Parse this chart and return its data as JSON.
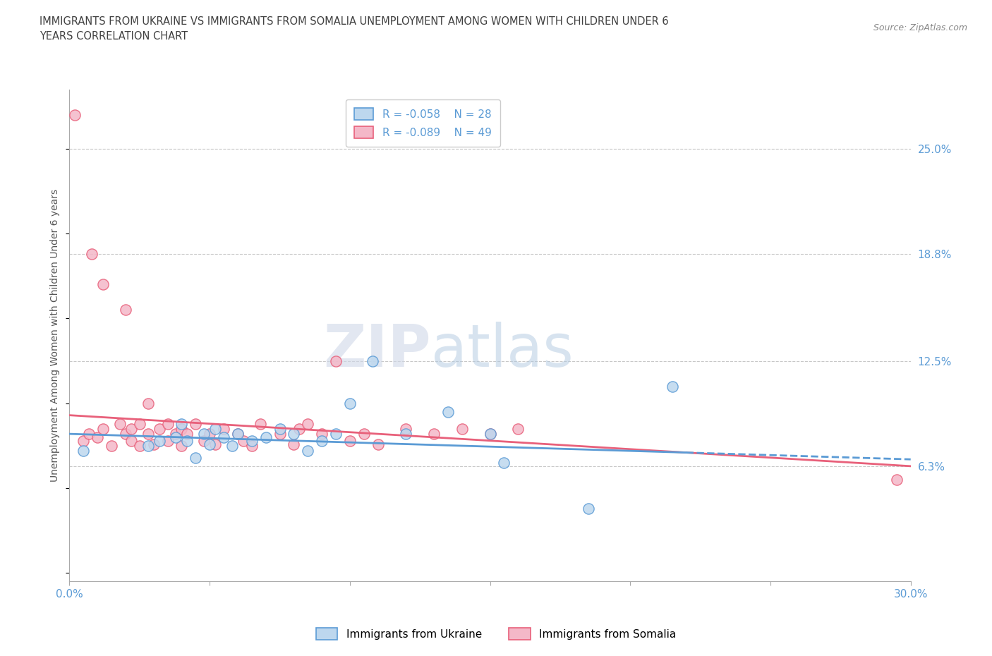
{
  "title": "IMMIGRANTS FROM UKRAINE VS IMMIGRANTS FROM SOMALIA UNEMPLOYMENT AMONG WOMEN WITH CHILDREN UNDER 6\nYEARS CORRELATION CHART",
  "source": "Source: ZipAtlas.com",
  "ylabel": "Unemployment Among Women with Children Under 6 years",
  "xlim": [
    0,
    0.3
  ],
  "ylim": [
    -0.005,
    0.285
  ],
  "yticks": [
    0.063,
    0.125,
    0.188,
    0.25
  ],
  "yticklabels": [
    "6.3%",
    "12.5%",
    "18.8%",
    "25.0%"
  ],
  "ukraine_color": "#5b9bd5",
  "ukraine_color_fill": "#bdd7ee",
  "somalia_color": "#e8607a",
  "somalia_color_fill": "#f4b8c8",
  "background_color": "#ffffff",
  "legend_label_ukraine": "R = -0.058    N = 28",
  "legend_label_somalia": "R = -0.089    N = 49",
  "ukraine_trend_y_start": 0.082,
  "ukraine_trend_y_end": 0.067,
  "somalia_trend_y_start": 0.093,
  "somalia_trend_y_end": 0.063,
  "grid_color": "#c8c8c8",
  "axis_color": "#5b9bd5",
  "title_color": "#404040",
  "tick_label_color": "#5b9bd5",
  "ukraine_x": [
    0.005,
    0.028,
    0.032,
    0.038,
    0.04,
    0.042,
    0.045,
    0.048,
    0.05,
    0.052,
    0.055,
    0.058,
    0.06,
    0.065,
    0.07,
    0.075,
    0.08,
    0.085,
    0.09,
    0.095,
    0.1,
    0.108,
    0.12,
    0.135,
    0.15,
    0.155,
    0.185,
    0.215
  ],
  "ukraine_y": [
    0.072,
    0.075,
    0.078,
    0.08,
    0.088,
    0.078,
    0.068,
    0.082,
    0.076,
    0.085,
    0.08,
    0.075,
    0.082,
    0.078,
    0.08,
    0.085,
    0.082,
    0.072,
    0.078,
    0.082,
    0.1,
    0.125,
    0.082,
    0.095,
    0.082,
    0.065,
    0.038,
    0.11
  ],
  "somalia_x": [
    0.002,
    0.005,
    0.007,
    0.01,
    0.012,
    0.015,
    0.018,
    0.02,
    0.022,
    0.022,
    0.025,
    0.025,
    0.028,
    0.03,
    0.032,
    0.035,
    0.035,
    0.038,
    0.04,
    0.04,
    0.042,
    0.045,
    0.048,
    0.05,
    0.052,
    0.055,
    0.06,
    0.062,
    0.065,
    0.068,
    0.075,
    0.08,
    0.082,
    0.085,
    0.09,
    0.095,
    0.1,
    0.105,
    0.11,
    0.12,
    0.13,
    0.14,
    0.15,
    0.16,
    0.008,
    0.012,
    0.02,
    0.028,
    0.295
  ],
  "somalia_y": [
    0.27,
    0.078,
    0.082,
    0.08,
    0.085,
    0.075,
    0.088,
    0.082,
    0.078,
    0.085,
    0.075,
    0.088,
    0.082,
    0.076,
    0.085,
    0.078,
    0.088,
    0.082,
    0.075,
    0.085,
    0.082,
    0.088,
    0.078,
    0.082,
    0.076,
    0.085,
    0.082,
    0.078,
    0.075,
    0.088,
    0.082,
    0.076,
    0.085,
    0.088,
    0.082,
    0.125,
    0.078,
    0.082,
    0.076,
    0.085,
    0.082,
    0.085,
    0.082,
    0.085,
    0.188,
    0.17,
    0.155,
    0.1,
    0.055
  ]
}
